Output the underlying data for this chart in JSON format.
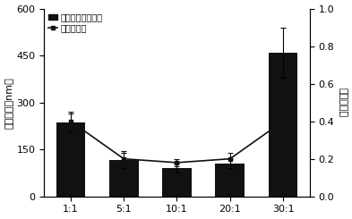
{
  "categories": [
    "1:1",
    "5:1",
    "10:1",
    "20:1",
    "30:1"
  ],
  "bar_values": [
    235,
    115,
    90,
    105,
    460
  ],
  "bar_errors": [
    30,
    25,
    15,
    15,
    80
  ],
  "line_values": [
    0.4,
    0.2,
    0.18,
    0.2,
    0.4
  ],
  "line_errors": [
    0.05,
    0.04,
    0.02,
    0.03,
    0.15
  ],
  "bar_color": "#111111",
  "line_color": "#111111",
  "left_ylabel": "粒径大小（nm）",
  "right_ylabel": "多聚分散度",
  "left_ylim": [
    0,
    600
  ],
  "right_ylim": [
    0.0,
    1.0
  ],
  "left_yticks": [
    0,
    150,
    300,
    450,
    600
  ],
  "right_yticks": [
    0.0,
    0.2,
    0.4,
    0.6,
    0.8,
    1.0
  ],
  "legend_bar": "纳米颗粒粒径大小",
  "legend_line": "多聚分散度",
  "bar_width": 0.55
}
